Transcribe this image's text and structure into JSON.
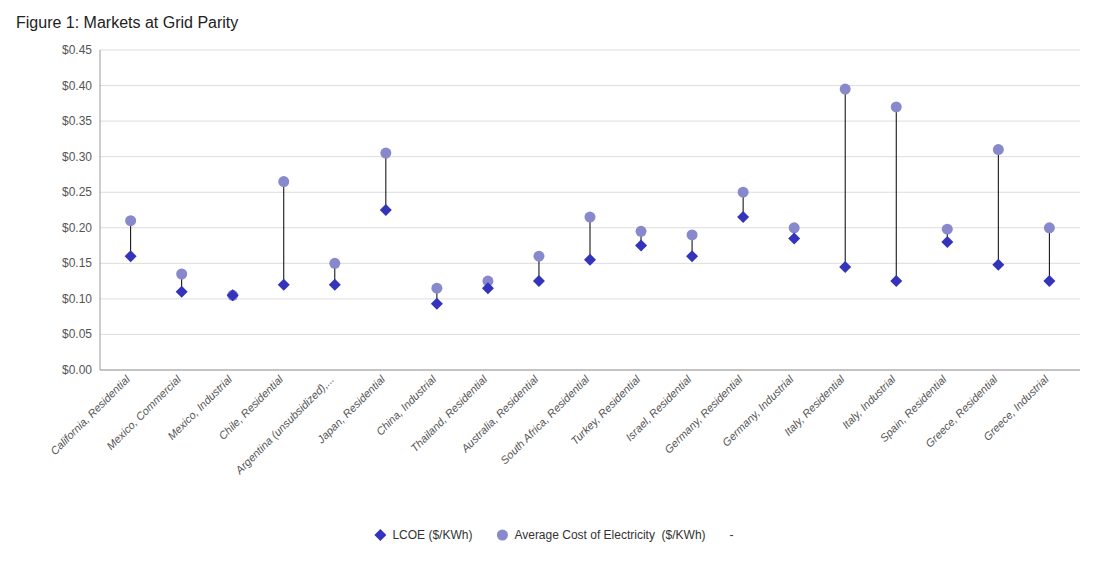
{
  "chart_data": {
    "type": "scatter",
    "title": "Figure 1: Markets at Grid Parity",
    "categories": [
      "California, Residential",
      "Mexico, Commercial",
      "Mexico, Industrial",
      "Chile, Residential",
      "Argentina (unsubsidized),...",
      "Japan, Residential",
      "China, Industrial",
      "Thailand, Residential",
      "Australia, Residential",
      "South Africa, Residential",
      "Turkey, Residential",
      "Israel, Residential",
      "Germany, Residential",
      "Germany, Industrial",
      "Italy, Residential",
      "Italy, Industrial",
      "Spain, Residential",
      "Greece, Residential",
      "Greece, Industrial"
    ],
    "series": [
      {
        "name": "LCOE ($/KWh)",
        "color": "#3333bb",
        "marker": "diamond",
        "values": [
          0.16,
          0.11,
          0.105,
          0.12,
          0.12,
          0.225,
          0.093,
          0.115,
          0.125,
          0.155,
          0.175,
          0.16,
          0.215,
          0.185,
          0.145,
          0.125,
          0.18,
          0.148,
          0.125
        ]
      },
      {
        "name": "Average Cost of Electricity  ($/KWh)",
        "color": "#8888cc",
        "marker": "circle",
        "values": [
          0.21,
          0.135,
          0.105,
          0.265,
          0.15,
          0.305,
          0.115,
          0.125,
          0.16,
          0.215,
          0.195,
          0.19,
          0.25,
          0.2,
          0.395,
          0.37,
          0.198,
          0.31,
          0.2
        ]
      },
      {
        "name": "-",
        "marker": "none",
        "values": [
          null,
          null,
          null,
          null,
          null,
          null,
          null,
          null,
          null,
          null,
          null,
          null,
          null,
          null,
          null,
          null,
          null,
          null,
          null
        ]
      }
    ],
    "ylim": [
      0.0,
      0.45
    ],
    "yticks": [
      {
        "value": 0.0,
        "label": "$0.00"
      },
      {
        "value": 0.05,
        "label": "$0.05"
      },
      {
        "value": 0.1,
        "label": "$0.10"
      },
      {
        "value": 0.15,
        "label": "$0.15"
      },
      {
        "value": 0.2,
        "label": "$0.20"
      },
      {
        "value": 0.25,
        "label": "$0.25"
      },
      {
        "value": 0.3,
        "label": "$0.30"
      },
      {
        "value": 0.35,
        "label": "$0.35"
      },
      {
        "value": 0.4,
        "label": "$0.40"
      },
      {
        "value": 0.45,
        "label": "$0.45"
      }
    ],
    "grid": true,
    "legend": "bottom"
  }
}
